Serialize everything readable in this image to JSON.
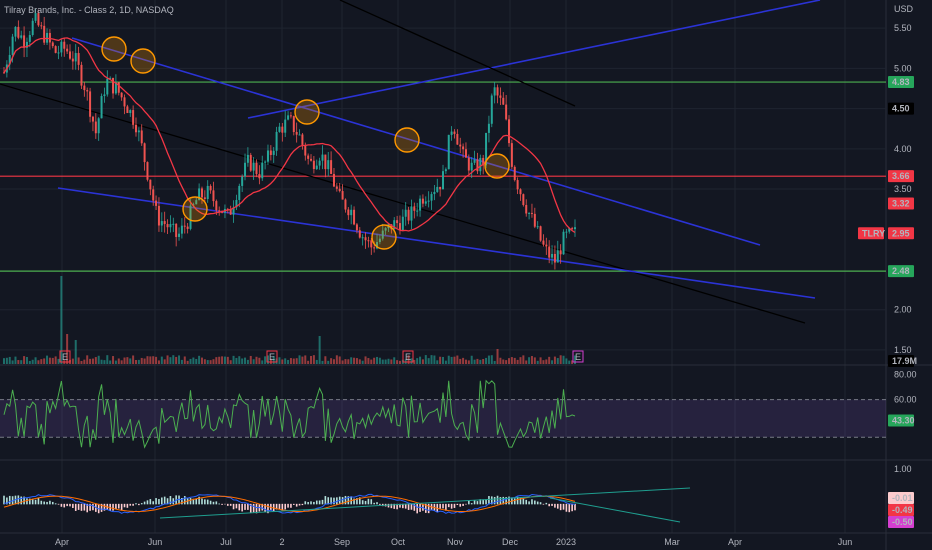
{
  "chart_data": {
    "type": "candlestick",
    "title": "Tilray Brands, Inc. - Class 2, 1D, NASDAQ",
    "currency": "USD",
    "x_ticks": [
      "Apr",
      "Jun",
      "Jul",
      "2",
      "Sep",
      "Oct",
      "Nov",
      "Dec",
      "2023",
      "Mar",
      "Apr",
      "Jun"
    ],
    "price_axis": {
      "ticks": [
        "5.50",
        "5.00",
        "4.50",
        "4.00",
        "3.50",
        "2.00",
        "1.50"
      ],
      "range": [
        1.35,
        5.85
      ]
    },
    "price_badges": [
      {
        "value": "4.83",
        "bg": "#26a65b",
        "fg": "#000000"
      },
      {
        "value": "4.50",
        "bg": "#000000",
        "fg": "#ffffff"
      },
      {
        "value": "3.66",
        "bg": "#f23645",
        "fg": "#ffffff"
      },
      {
        "value": "3.32",
        "bg": "#f23645",
        "fg": "#ffffff"
      },
      {
        "value": "2.95",
        "bg": "#f23645",
        "fg": "#ffffff",
        "tag": "TLRY"
      },
      {
        "value": "2.48",
        "bg": "#26a65b",
        "fg": "#000000"
      }
    ],
    "horizontal_levels": [
      {
        "value": 4.83,
        "color": "#4caf50"
      },
      {
        "value": 3.66,
        "color": "#f23645"
      },
      {
        "value": 2.48,
        "color": "#4caf50"
      }
    ],
    "ohlc_path": [
      4.95,
      5.5,
      5.35,
      5.6,
      5.4,
      5.2,
      5.25,
      5.1,
      4.75,
      4.2,
      4.85,
      4.75,
      4.55,
      4.3,
      3.75,
      3.15,
      3.05,
      2.9,
      3.1,
      3.4,
      3.45,
      3.3,
      3.15,
      3.55,
      3.85,
      3.7,
      3.9,
      4.25,
      4.35,
      4.15,
      3.8,
      3.95,
      3.7,
      3.35,
      3.25,
      2.95,
      2.78,
      2.9,
      3.05,
      3.1,
      3.2,
      3.4,
      3.5,
      3.6,
      4.35,
      3.9,
      3.75,
      3.85,
      4.75,
      4.5,
      3.7,
      3.35,
      3.05,
      2.75,
      2.6,
      2.9,
      2.95
    ],
    "volume": {
      "last_badge": "17.9M"
    },
    "rsi": {
      "ticks": [
        "80.00",
        "60.00"
      ],
      "range": [
        15,
        82
      ],
      "bands": [
        60,
        30
      ],
      "value_badge": "43.30"
    },
    "macd": {
      "ticks": [
        "1.00"
      ],
      "range": [
        -0.75,
        1.2
      ],
      "value_badges": [
        {
          "value": "-0.01",
          "bg": "#fccbcd",
          "fg": "#000000"
        },
        {
          "value": "-0.49",
          "bg": "#f23645",
          "fg": "#ffffff"
        },
        {
          "value": "-0.50",
          "bg": "#d43fd0",
          "fg": "#ffffff"
        }
      ]
    },
    "grid": true,
    "earnings_markers": [
      "E",
      "E",
      "E",
      "E"
    ]
  }
}
